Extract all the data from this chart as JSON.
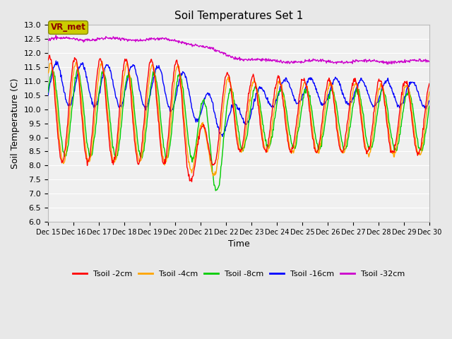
{
  "title": "Soil Temperatures Set 1",
  "xlabel": "Time",
  "ylabel": "Soil Temperature (C)",
  "ylim": [
    6.0,
    13.0
  ],
  "yticks": [
    6.0,
    6.5,
    7.0,
    7.5,
    8.0,
    8.5,
    9.0,
    9.5,
    10.0,
    10.5,
    11.0,
    11.5,
    12.0,
    12.5,
    13.0
  ],
  "colors": {
    "tsoil_2cm": "#ff0000",
    "tsoil_4cm": "#ffa500",
    "tsoil_8cm": "#00cc00",
    "tsoil_16cm": "#0000ff",
    "tsoil_32cm": "#cc00cc"
  },
  "legend_labels": [
    "Tsoil -2cm",
    "Tsoil -4cm",
    "Tsoil -8cm",
    "Tsoil -16cm",
    "Tsoil -32cm"
  ],
  "vr_met_box_color": "#cccc00",
  "vr_met_text_color": "#8b0000",
  "background_color": "#e8e8e8",
  "plot_bg_color": "#f0f0f0",
  "grid_color": "#ffffff",
  "n_points": 720,
  "x_start": 15,
  "x_end": 30,
  "xtick_positions": [
    15,
    16,
    17,
    18,
    19,
    20,
    21,
    22,
    23,
    24,
    25,
    26,
    27,
    28,
    29,
    30
  ],
  "xtick_labels": [
    "Dec 15",
    "Dec 16",
    "Dec 17",
    "Dec 18",
    "Dec 19",
    "Dec 20",
    "Dec 21",
    "Dec 22",
    "Dec 23",
    "Dec 24",
    "Dec 25",
    "Dec 26",
    "Dec 27",
    "Dec 28",
    "Dec 29",
    "Dec 30"
  ],
  "figsize": [
    6.4,
    4.8
  ],
  "dpi": 100
}
